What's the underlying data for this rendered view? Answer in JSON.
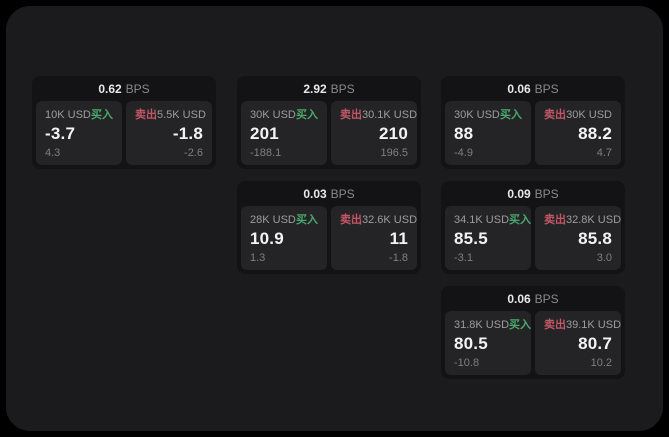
{
  "labels": {
    "bps_unit": "BPS",
    "buy": "买入",
    "sell": "卖出"
  },
  "colors": {
    "background": "#000000",
    "board_surface": "#1b1b1d",
    "card_surface": "#131315",
    "panel_surface": "#242427",
    "buy_green": "#4aa86c",
    "sell_red": "#c25666"
  },
  "cards": [
    {
      "spread_bps": "0.62",
      "buy": {
        "size": "10K USD",
        "price": "-3.7",
        "sub": "4.3"
      },
      "sell": {
        "size": "5.5K USD",
        "price": "-1.8",
        "sub": "-2.6"
      }
    },
    {
      "spread_bps": "2.92",
      "buy": {
        "size": "30K USD",
        "price": "201",
        "sub": "-188.1"
      },
      "sell": {
        "size": "30.1K USD",
        "price": "210",
        "sub": "196.5"
      }
    },
    {
      "spread_bps": "0.06",
      "buy": {
        "size": "30K USD",
        "price": "88",
        "sub": "-4.9"
      },
      "sell": {
        "size": "30K USD",
        "price": "88.2",
        "sub": "4.7"
      }
    },
    {
      "spread_bps": "0.03",
      "buy": {
        "size": "28K USD",
        "price": "10.9",
        "sub": "1.3"
      },
      "sell": {
        "size": "32.6K USD",
        "price": "11",
        "sub": "-1.8"
      }
    },
    {
      "spread_bps": "0.09",
      "buy": {
        "size": "34.1K USD",
        "price": "85.5",
        "sub": "-3.1"
      },
      "sell": {
        "size": "32.8K USD",
        "price": "85.8",
        "sub": "3.0"
      }
    },
    {
      "spread_bps": "0.06",
      "buy": {
        "size": "31.8K USD",
        "price": "80.5",
        "sub": "-10.8"
      },
      "sell": {
        "size": "39.1K USD",
        "price": "80.7",
        "sub": "10.2"
      }
    }
  ]
}
